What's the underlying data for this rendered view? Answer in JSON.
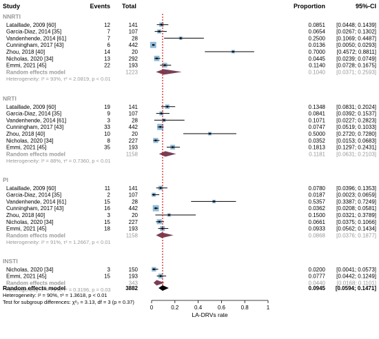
{
  "headers": {
    "study": "Study",
    "events": "Events",
    "total": "Total",
    "proportion": "Proportion",
    "ci": "95%-CI"
  },
  "chart_data": {
    "type": "forest",
    "x_axis": {
      "label": "LA-DRVs rate",
      "ticks": [
        "0",
        "0.2",
        "0.4",
        "0.6",
        "0.8",
        "1"
      ],
      "tick_values": [
        0,
        0.2,
        0.4,
        0.6,
        0.8,
        1
      ],
      "range": [
        0,
        1
      ],
      "reference_line": 0.0945
    },
    "colors": {
      "square": "#8fbad8",
      "diamond": "#7a3f55",
      "grey_text": "#999999",
      "ref_line": "#cc0000",
      "overall_diamond": "#000000"
    },
    "groups": [
      {
        "name": "NNRTI",
        "studies": [
          {
            "study": "Lataillade, 2009 [60]",
            "events": "12",
            "total": "141",
            "proportion": "0.0851",
            "ci": "[0.0448; 0.1439]",
            "p": 0.0851,
            "lo": 0.0448,
            "hi": 0.1439
          },
          {
            "study": "Garcia-Diaz, 2014 [35]",
            "events": "7",
            "total": "107",
            "proportion": "0.0654",
            "ci": "[0.0267; 0.1302]",
            "p": 0.0654,
            "lo": 0.0267,
            "hi": 0.1302
          },
          {
            "study": "Vandenhende, 2014 [61]",
            "events": "7",
            "total": "28",
            "proportion": "0.2500",
            "ci": "[0.1069; 0.4487]",
            "p": 0.25,
            "lo": 0.1069,
            "hi": 0.4487
          },
          {
            "study": "Cunningham, 2017 [43]",
            "events": "6",
            "total": "442",
            "proportion": "0.0136",
            "ci": "[0.0050; 0.0293]",
            "p": 0.0136,
            "lo": 0.005,
            "hi": 0.0293
          },
          {
            "study": "Zhou, 2018 [40]",
            "events": "14",
            "total": "20",
            "proportion": "0.7000",
            "ci": "[0.4572; 0.8811]",
            "p": 0.7,
            "lo": 0.4572,
            "hi": 0.8811
          },
          {
            "study": "Nicholas, 2020 [34]",
            "events": "13",
            "total": "292",
            "proportion": "0.0445",
            "ci": "[0.0239; 0.0749]",
            "p": 0.0445,
            "lo": 0.0239,
            "hi": 0.0749
          },
          {
            "study": "Emmi, 2021 [45]",
            "events": "22",
            "total": "193",
            "proportion": "0.1140",
            "ci": "[0.0728; 0.1675]",
            "p": 0.114,
            "lo": 0.0728,
            "hi": 0.1675
          }
        ],
        "re_label": "Random effects model",
        "re_total": "1223",
        "re_proportion": "0.1040",
        "re_ci": "[0.0371; 0.2593]",
        "re_p": 0.104,
        "re_lo": 0.0371,
        "re_hi": 0.2593,
        "het": "Heterogeneity: I² = 93%, τ² = 2.0819, p < 0.01"
      },
      {
        "name": "NRTI",
        "studies": [
          {
            "study": "Lataillade, 2009 [60]",
            "events": "19",
            "total": "141",
            "proportion": "0.1348",
            "ci": "[0.0831; 0.2024]",
            "p": 0.1348,
            "lo": 0.0831,
            "hi": 0.2024
          },
          {
            "study": "Garcia-Diaz, 2014 [35]",
            "events": "9",
            "total": "107",
            "proportion": "0.0841",
            "ci": "[0.0392; 0.1537]",
            "p": 0.0841,
            "lo": 0.0392,
            "hi": 0.1537
          },
          {
            "study": "Vandenhende, 2014 [61]",
            "events": "3",
            "total": "28",
            "proportion": "0.1071",
            "ci": "[0.0227; 0.2823]",
            "p": 0.1071,
            "lo": 0.0227,
            "hi": 0.2823
          },
          {
            "study": "Cunningham, 2017 [43]",
            "events": "33",
            "total": "442",
            "proportion": "0.0747",
            "ci": "[0.0519; 0.1033]",
            "p": 0.0747,
            "lo": 0.0519,
            "hi": 0.1033
          },
          {
            "study": "Zhou, 2018 [40]",
            "events": "10",
            "total": "20",
            "proportion": "0.5000",
            "ci": "[0.2720; 0.7280]",
            "p": 0.5,
            "lo": 0.272,
            "hi": 0.728
          },
          {
            "study": "Nicholas, 2020 [34]",
            "events": "8",
            "total": "227",
            "proportion": "0.0352",
            "ci": "[0.0153; 0.0683]",
            "p": 0.0352,
            "lo": 0.0153,
            "hi": 0.0683
          },
          {
            "study": "Emmi, 2021 [45]",
            "events": "35",
            "total": "193",
            "proportion": "0.1813",
            "ci": "[0.1297; 0.2431]",
            "p": 0.1813,
            "lo": 0.1297,
            "hi": 0.2431
          }
        ],
        "re_label": "Random effects model",
        "re_total": "1158",
        "re_proportion": "0.1181",
        "re_ci": "[0.0631; 0.2103]",
        "re_p": 0.1181,
        "re_lo": 0.0631,
        "re_hi": 0.2103,
        "het": "Heterogeneity: I² = 88%, τ² = 0.7360, p < 0.01"
      },
      {
        "name": "PI",
        "studies": [
          {
            "study": "Lataillade, 2009 [60]",
            "events": "11",
            "total": "141",
            "proportion": "0.0780",
            "ci": "[0.0396; 0.1353]",
            "p": 0.078,
            "lo": 0.0396,
            "hi": 0.1353
          },
          {
            "study": "Garcia-Diaz, 2014 [35]",
            "events": "2",
            "total": "107",
            "proportion": "0.0187",
            "ci": "[0.0023; 0.0659]",
            "p": 0.0187,
            "lo": 0.0023,
            "hi": 0.0659
          },
          {
            "study": "Vandenhende, 2014 [61]",
            "events": "15",
            "total": "28",
            "proportion": "0.5357",
            "ci": "[0.3387; 0.7249]",
            "p": 0.5357,
            "lo": 0.3387,
            "hi": 0.7249
          },
          {
            "study": "Cunningham, 2017 [43]",
            "events": "16",
            "total": "442",
            "proportion": "0.0362",
            "ci": "[0.0208; 0.0581]",
            "p": 0.0362,
            "lo": 0.0208,
            "hi": 0.0581
          },
          {
            "study": "Zhou, 2018 [40]",
            "events": "3",
            "total": "20",
            "proportion": "0.1500",
            "ci": "[0.0321; 0.3789]",
            "p": 0.15,
            "lo": 0.0321,
            "hi": 0.3789
          },
          {
            "study": "Nicholas, 2020 [34]",
            "events": "15",
            "total": "227",
            "proportion": "0.0661",
            "ci": "[0.0375; 0.1066]",
            "p": 0.0661,
            "lo": 0.0375,
            "hi": 0.1066
          },
          {
            "study": "Emmi, 2021 [45]",
            "events": "18",
            "total": "193",
            "proportion": "0.0933",
            "ci": "[0.0562; 0.1434]",
            "p": 0.0933,
            "lo": 0.0562,
            "hi": 0.1434
          }
        ],
        "re_label": "Random effects model",
        "re_total": "1158",
        "re_proportion": "0.0868",
        "re_ci": "[0.0376; 0.1877]",
        "re_p": 0.0868,
        "re_lo": 0.0376,
        "re_hi": 0.1877,
        "het": "Heterogeneity: I² = 91%, τ² = 1.2667, p < 0.01"
      },
      {
        "name": "INSTI",
        "studies": [
          {
            "study": "Nicholas, 2020 [34]",
            "events": "3",
            "total": "150",
            "proportion": "0.0200",
            "ci": "[0.0041; 0.0573]",
            "p": 0.02,
            "lo": 0.0041,
            "hi": 0.0573
          },
          {
            "study": "Emmi, 2021 [45]",
            "events": "15",
            "total": "193",
            "proportion": "0.0777",
            "ci": "[0.0442; 0.1249]",
            "p": 0.0777,
            "lo": 0.0442,
            "hi": 0.1249
          }
        ],
        "re_label": "Random effects model",
        "re_total": "343",
        "re_proportion": "0.0440",
        "re_ci": "[0.0168; 0.1101]",
        "re_p": 0.044,
        "re_lo": 0.0168,
        "re_hi": 0.1101,
        "het": "Heterogeneity: I² = 79%, τ² = 0.3196, p = 0.03"
      }
    ],
    "overall": {
      "label": "Random effects model",
      "total": "3882",
      "proportion": "0.0945",
      "ci": "[0.0594; 0.1471]",
      "p": 0.0945,
      "lo": 0.0594,
      "hi": 0.1471,
      "het": "Heterogeneity: I² = 90%, τ² = 1.3618, p < 0.01",
      "subgroup_test": "Test for subgroup differences: χ²₃ = 3.13, df = 3 (p = 0.37)"
    }
  }
}
